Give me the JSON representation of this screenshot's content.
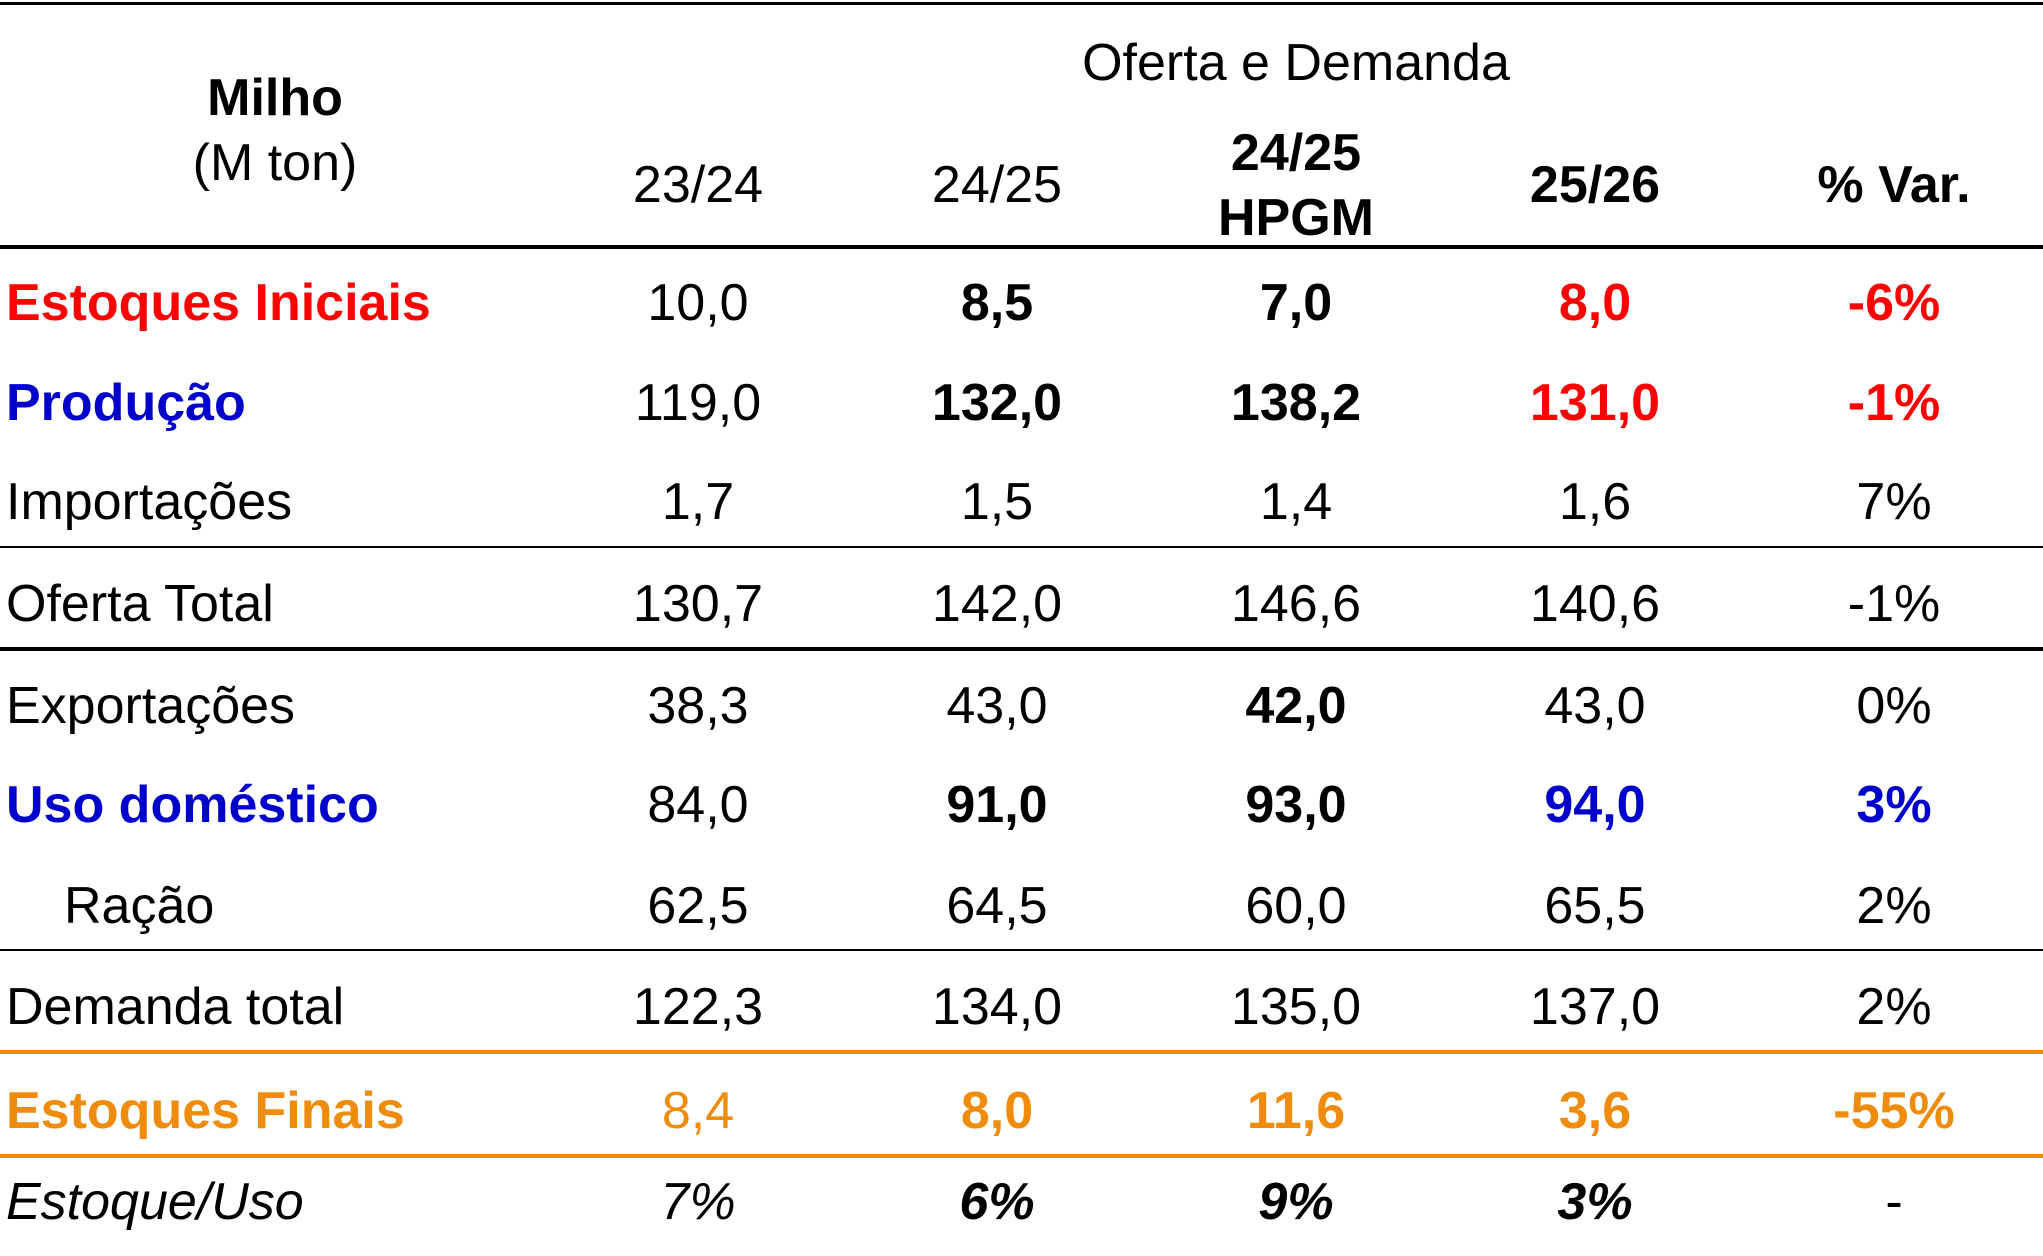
{
  "header": {
    "title": "Milho",
    "unit": "(M ton)",
    "group": "Oferta e Demanda",
    "columns": [
      {
        "label": "23/24",
        "bold": false
      },
      {
        "label": "24/25",
        "bold": false
      },
      {
        "label": "24/25",
        "sub": "HPGM",
        "bold": true
      },
      {
        "label": "25/26",
        "bold": true
      },
      {
        "label": "% Var.",
        "bold": true
      }
    ]
  },
  "colors": {
    "red": "#ff0000",
    "blue": "#0000cc",
    "orange": "#ef8c0c",
    "black": "#000000"
  },
  "rows": [
    {
      "label": "Estoques Iniciais",
      "label_color": "red",
      "label_bold": true,
      "cells": [
        {
          "v": "10,0"
        },
        {
          "v": "8,5",
          "b": true
        },
        {
          "v": "7,0",
          "b": true
        },
        {
          "v": "8,0",
          "b": true,
          "c": "red"
        },
        {
          "v": "-6%",
          "b": true,
          "c": "red"
        }
      ]
    },
    {
      "label": "Produção",
      "label_color": "blue",
      "label_bold": true,
      "cells": [
        {
          "v": "119,0"
        },
        {
          "v": "132,0",
          "b": true
        },
        {
          "v": "138,2",
          "b": true
        },
        {
          "v": "131,0",
          "b": true,
          "c": "red"
        },
        {
          "v": "-1%",
          "b": true,
          "c": "red"
        }
      ]
    },
    {
      "label": "Importações",
      "cells": [
        {
          "v": "1,7"
        },
        {
          "v": "1,5"
        },
        {
          "v": "1,4"
        },
        {
          "v": "1,6"
        },
        {
          "v": "7%"
        }
      ]
    },
    {
      "label": "Oferta Total",
      "cells": [
        {
          "v": "130,7"
        },
        {
          "v": "142,0"
        },
        {
          "v": "146,6"
        },
        {
          "v": "140,6"
        },
        {
          "v": "-1%"
        }
      ]
    },
    {
      "label": "Exportações",
      "cells": [
        {
          "v": "38,3"
        },
        {
          "v": "43,0"
        },
        {
          "v": "42,0",
          "b": true
        },
        {
          "v": "43,0"
        },
        {
          "v": "0%"
        }
      ]
    },
    {
      "label": "Uso doméstico",
      "label_color": "blue",
      "label_bold": true,
      "cells": [
        {
          "v": "84,0"
        },
        {
          "v": "91,0",
          "b": true
        },
        {
          "v": "93,0",
          "b": true
        },
        {
          "v": "94,0",
          "b": true,
          "c": "blue"
        },
        {
          "v": "3%",
          "b": true,
          "c": "blue"
        }
      ]
    },
    {
      "label": "Ração",
      "indent": true,
      "cells": [
        {
          "v": "62,5"
        },
        {
          "v": "64,5"
        },
        {
          "v": "60,0"
        },
        {
          "v": "65,5"
        },
        {
          "v": "2%"
        }
      ]
    },
    {
      "label": "Demanda total",
      "cells": [
        {
          "v": "122,3"
        },
        {
          "v": "134,0"
        },
        {
          "v": "135,0"
        },
        {
          "v": "137,0"
        },
        {
          "v": "2%"
        }
      ]
    },
    {
      "label": "Estoques Finais",
      "label_color": "orange",
      "label_bold": true,
      "cells": [
        {
          "v": "8,4",
          "c": "orange"
        },
        {
          "v": "8,0",
          "b": true,
          "c": "orange"
        },
        {
          "v": "11,6",
          "b": true,
          "c": "orange"
        },
        {
          "v": "3,6",
          "b": true,
          "c": "orange"
        },
        {
          "v": "-55%",
          "b": true,
          "c": "orange"
        }
      ]
    },
    {
      "label": "Estoque/Uso",
      "italic": true,
      "cells": [
        {
          "v": "7%",
          "i": true
        },
        {
          "v": "6%",
          "b": true,
          "i": true
        },
        {
          "v": "9%",
          "b": true,
          "i": true
        },
        {
          "v": "3%",
          "b": true,
          "i": true
        },
        {
          "v": "-"
        }
      ]
    }
  ]
}
